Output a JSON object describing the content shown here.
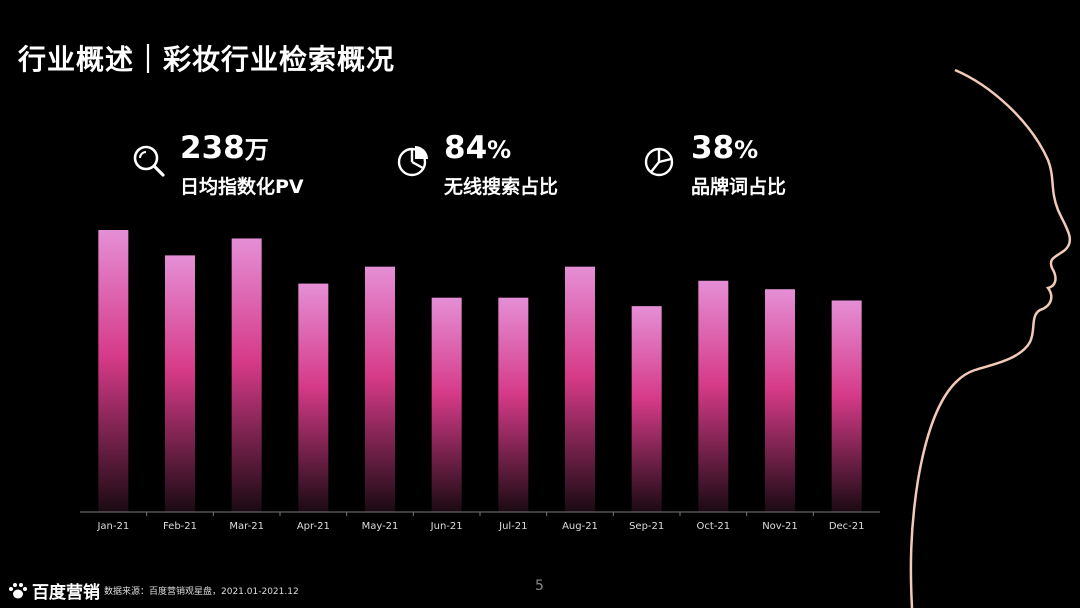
{
  "header": {
    "title": "行业概述｜彩妆行业检索概况"
  },
  "kpis": [
    {
      "value": "238",
      "unit": "万",
      "label": "日均指数化PV",
      "icon": "search-icon"
    },
    {
      "value": "84",
      "unit": "%",
      "label": "无线搜索占比",
      "icon": "pie-chart-icon"
    },
    {
      "value": "38",
      "unit": "%",
      "label": "品牌词占比",
      "icon": "pie-chart-icon"
    }
  ],
  "chart_data": {
    "type": "bar",
    "categories": [
      "Jan-21",
      "Feb-21",
      "Mar-21",
      "Apr-21",
      "May-21",
      "Jun-21",
      "Jul-21",
      "Aug-21",
      "Sep-21",
      "Oct-21",
      "Nov-21",
      "Dec-21"
    ],
    "values": [
      100,
      91,
      97,
      81,
      87,
      76,
      76,
      87,
      73,
      82,
      79,
      75
    ],
    "ylim": [
      0,
      100
    ],
    "grid": false,
    "legend": "none",
    "bar_color_top": "#e58fd6",
    "bar_color_mid": "#d63a88",
    "bar_color_bottom": "#1a0a12"
  },
  "footer": {
    "logo_text": "百度营销",
    "source": "数据来源：百度营销观星盘，2021.01-2021.12",
    "page_number": "5"
  },
  "colors": {
    "background": "#000000",
    "accent": "#d63a88",
    "text": "#ffffff"
  }
}
